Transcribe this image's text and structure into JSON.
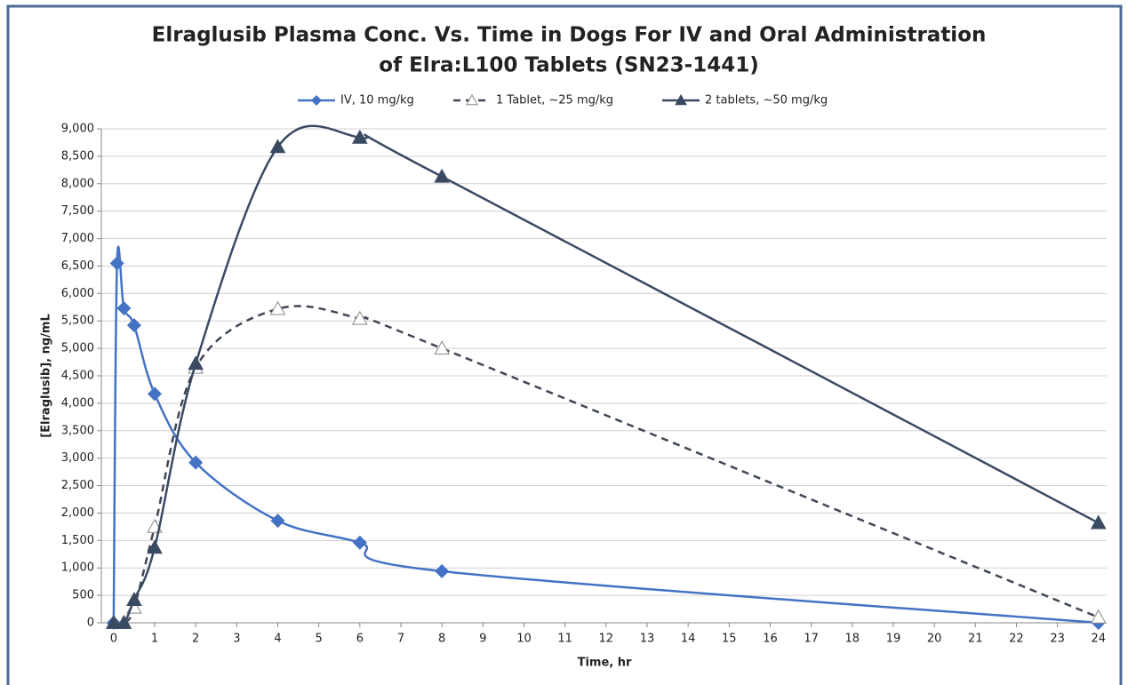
{
  "chart_data": {
    "type": "line",
    "title": [
      "Elraglusib Plasma Conc. Vs. Time in Dogs For IV and Oral Administration",
      "of Elra:L100 Tablets (SN23-1441)"
    ],
    "x_label": "Time, hr",
    "y_label": "[Elraglusib], ng/mL",
    "xlim": [
      -0.3,
      24.2
    ],
    "xticks": [
      0,
      1,
      2,
      3,
      4,
      5,
      6,
      7,
      8,
      9,
      10,
      11,
      12,
      13,
      14,
      15,
      16,
      17,
      18,
      19,
      20,
      21,
      22,
      23,
      24
    ],
    "ylim": [
      0,
      9000
    ],
    "yticks": [
      0,
      {
        "value": 500,
        "label": "500"
      },
      {
        "value": 1000,
        "label": "1,000"
      },
      {
        "value": 1500,
        "label": "1,500"
      },
      {
        "value": 2000,
        "label": "2,000"
      },
      {
        "value": 2500,
        "label": "2,500"
      },
      {
        "value": 3000,
        "label": "3,000"
      },
      {
        "value": 3500,
        "label": "3,500"
      },
      {
        "value": 4000,
        "label": "4,000"
      },
      {
        "value": 4500,
        "label": "4,500"
      },
      {
        "value": 5000,
        "label": "5,000"
      },
      {
        "value": 5500,
        "label": "5,500"
      },
      {
        "value": 6000,
        "label": "6,000"
      },
      {
        "value": 6500,
        "label": "6,500"
      },
      {
        "value": 7000,
        "label": "7,000"
      },
      {
        "value": 7500,
        "label": "7,500"
      },
      {
        "value": 8000,
        "label": "8,000"
      },
      {
        "value": 8500,
        "label": "8,500"
      },
      {
        "value": 9000,
        "label": "9,000"
      }
    ],
    "grid": true,
    "legend": "top",
    "series": [
      {
        "name": "IV, 10 mg/kg",
        "color": "#4472c4",
        "marker": "diamond",
        "dashed": false,
        "x": [
          0,
          0.083,
          0.25,
          0.5,
          1,
          2,
          4,
          6,
          8,
          24
        ],
        "values": [
          0,
          6550,
          5730,
          5420,
          4170,
          2920,
          1860,
          1460,
          940,
          0
        ]
      },
      {
        "name": "1 Tablet, ~25 mg/kg",
        "color": "#3f4656",
        "marker": "triangle-open",
        "dashed": true,
        "x": [
          0,
          0.25,
          0.5,
          1,
          2,
          4,
          6,
          8,
          24
        ],
        "values": [
          0,
          0,
          280,
          1750,
          4650,
          5720,
          5540,
          5000,
          100
        ]
      },
      {
        "name": "2 tablets, ~50 mg/kg",
        "color": "#3b4a63",
        "marker": "triangle",
        "dashed": false,
        "x": [
          0,
          0.25,
          0.5,
          1,
          2,
          4,
          6,
          8,
          24
        ],
        "values": [
          0,
          0,
          420,
          1370,
          4720,
          8670,
          8840,
          8130,
          1820
        ]
      }
    ]
  }
}
